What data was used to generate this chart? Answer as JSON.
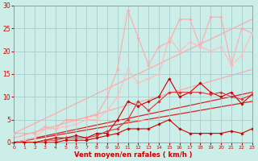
{
  "bg_color": "#cceee8",
  "grid_color": "#aacccc",
  "xlabel": "Vent moyen/en rafales ( km/h )",
  "xlabel_color": "#cc0000",
  "tick_color": "#cc0000",
  "xlim": [
    0,
    23
  ],
  "ylim": [
    0,
    30
  ],
  "xticks": [
    0,
    1,
    2,
    3,
    4,
    5,
    6,
    7,
    8,
    9,
    10,
    11,
    12,
    13,
    14,
    15,
    16,
    17,
    18,
    19,
    20,
    21,
    22,
    23
  ],
  "yticks": [
    0,
    5,
    10,
    15,
    20,
    25,
    30
  ],
  "lines": [
    {
      "x": [
        0,
        23
      ],
      "y": [
        2,
        27
      ],
      "color": "#ffaaaa",
      "lw": 0.9,
      "marker": null,
      "ms": 0,
      "zorder": 1
    },
    {
      "x": [
        0,
        23
      ],
      "y": [
        1,
        16
      ],
      "color": "#ffaaaa",
      "lw": 0.9,
      "marker": null,
      "ms": 0,
      "zorder": 1
    },
    {
      "x": [
        0,
        23
      ],
      "y": [
        0,
        11
      ],
      "color": "#dd2222",
      "lw": 0.9,
      "marker": null,
      "ms": 0,
      "zorder": 1
    },
    {
      "x": [
        0,
        23
      ],
      "y": [
        0,
        9
      ],
      "color": "#dd2222",
      "lw": 0.9,
      "marker": null,
      "ms": 0,
      "zorder": 1
    },
    {
      "x": [
        0,
        1,
        2,
        3,
        4,
        5,
        6,
        7,
        8,
        9,
        10,
        11,
        12,
        13,
        14,
        15,
        16,
        17,
        18,
        19,
        20,
        21,
        22,
        23
      ],
      "y": [
        2,
        2,
        2,
        3.5,
        3,
        5,
        5,
        5.5,
        6,
        10,
        16,
        29,
        23,
        17,
        21,
        22,
        27,
        27,
        21,
        27.5,
        27.5,
        17,
        25,
        24
      ],
      "color": "#ffaaaa",
      "lw": 0.8,
      "marker": "D",
      "ms": 1.8,
      "zorder": 3
    },
    {
      "x": [
        0,
        1,
        2,
        3,
        4,
        5,
        6,
        7,
        8,
        9,
        10,
        11,
        12,
        13,
        14,
        15,
        16,
        17,
        18,
        19,
        20,
        21,
        22,
        23
      ],
      "y": [
        0,
        0.5,
        1,
        3,
        3,
        3.5,
        4,
        5,
        5,
        7,
        10,
        16,
        13,
        14,
        15,
        23,
        20,
        22,
        21,
        20,
        21,
        17,
        19,
        24
      ],
      "color": "#ffbbbb",
      "lw": 0.8,
      "marker": "D",
      "ms": 1.8,
      "zorder": 3
    },
    {
      "x": [
        0,
        1,
        2,
        3,
        4,
        5,
        6,
        7,
        8,
        9,
        10,
        11,
        12,
        13,
        14,
        15,
        16,
        17,
        18,
        19,
        20,
        21,
        22,
        23
      ],
      "y": [
        0,
        0,
        0,
        0.5,
        1,
        1,
        1.5,
        1,
        2,
        2,
        5,
        9,
        8,
        9,
        10,
        14,
        10,
        11,
        13,
        11,
        10,
        11,
        8.5,
        10.5
      ],
      "color": "#cc0000",
      "lw": 0.8,
      "marker": "D",
      "ms": 1.8,
      "zorder": 3
    },
    {
      "x": [
        0,
        1,
        2,
        3,
        4,
        5,
        6,
        7,
        8,
        9,
        10,
        11,
        12,
        13,
        14,
        15,
        16,
        17,
        18,
        19,
        20,
        21,
        22,
        23
      ],
      "y": [
        0,
        0,
        0,
        0.5,
        0.5,
        1,
        1,
        1,
        1.5,
        2.5,
        3,
        5,
        9,
        7,
        9,
        11,
        11,
        11,
        11,
        10.5,
        11,
        10,
        9.5,
        10.5
      ],
      "color": "#dd3333",
      "lw": 0.8,
      "marker": "D",
      "ms": 1.8,
      "zorder": 3
    },
    {
      "x": [
        0,
        1,
        2,
        3,
        4,
        5,
        6,
        7,
        8,
        9,
        10,
        11,
        12,
        13,
        14,
        15,
        16,
        17,
        18,
        19,
        20,
        21,
        22,
        23
      ],
      "y": [
        0,
        0,
        0,
        0,
        0,
        0.5,
        0.5,
        0.5,
        1,
        1.5,
        2,
        3,
        3,
        3,
        4,
        5,
        3,
        2,
        2,
        2,
        2,
        2.5,
        2,
        3
      ],
      "color": "#cc0000",
      "lw": 0.8,
      "marker": "D",
      "ms": 1.8,
      "zorder": 3
    }
  ]
}
